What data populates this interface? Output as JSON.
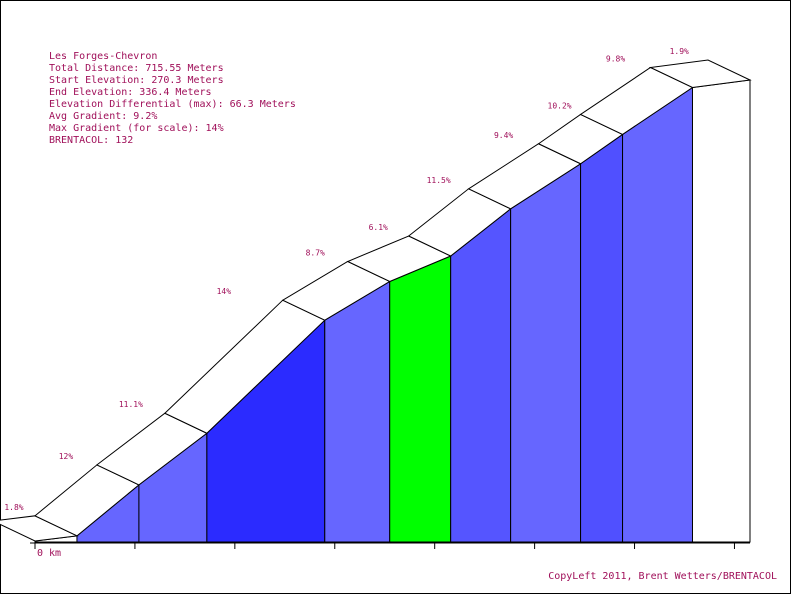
{
  "info": {
    "name": "Les Forges-Chevron",
    "total_distance": "Total Distance: 715.55 Meters",
    "start_elevation": "Start Elevation: 270.3 Meters",
    "end_elevation": "End Elevation: 336.4 Meters",
    "elevation_differential": "Elevation Differential (max): 66.3 Meters",
    "avg_gradient": "Avg Gradient: 9.2%",
    "max_gradient": "Max Gradient (for scale): 14%",
    "brentacol": "BRENTACOL: 132"
  },
  "copyleft": "CopyLeft 2011, Brent Wetters/BRENTACOL",
  "chart_data": {
    "type": "area",
    "title": "Les Forges-Chevron",
    "xlabel": "",
    "ylabel": "",
    "x_tick_labels": [
      "0 km"
    ],
    "x_unit": "m",
    "y_unit": "m",
    "xlim": [
      0,
      715.55
    ],
    "segments": [
      {
        "label": "1.8%",
        "gradient": 1.8,
        "x_start": 0,
        "x_end": 42,
        "color": "#ffffff"
      },
      {
        "label": "12%",
        "gradient": 12.0,
        "x_start": 42,
        "x_end": 104,
        "color": "#6666ff"
      },
      {
        "label": "11.1%",
        "gradient": 11.1,
        "x_start": 104,
        "x_end": 172,
        "color": "#6666ff"
      },
      {
        "label": "14%",
        "gradient": 14.0,
        "x_start": 172,
        "x_end": 290,
        "color": "#2b2bff"
      },
      {
        "label": "8.7%",
        "gradient": 8.7,
        "x_start": 290,
        "x_end": 355,
        "color": "#6666ff"
      },
      {
        "label": "6.1%",
        "gradient": 6.1,
        "x_start": 355,
        "x_end": 416,
        "color": "#00ff00"
      },
      {
        "label": "11.5%",
        "gradient": 11.5,
        "x_start": 416,
        "x_end": 476,
        "color": "#5555ff"
      },
      {
        "label": "9.4%",
        "gradient": 9.4,
        "x_start": 476,
        "x_end": 546,
        "color": "#6666ff"
      },
      {
        "label": "10.2%",
        "gradient": 10.2,
        "x_start": 546,
        "x_end": 588,
        "color": "#5050ff"
      },
      {
        "label": "9.8%",
        "gradient": 9.8,
        "x_start": 588,
        "x_end": 658,
        "color": "#6666ff"
      },
      {
        "label": "1.9%",
        "gradient": 1.9,
        "x_start": 658,
        "x_end": 715.55,
        "color": "#ffffff"
      }
    ]
  }
}
